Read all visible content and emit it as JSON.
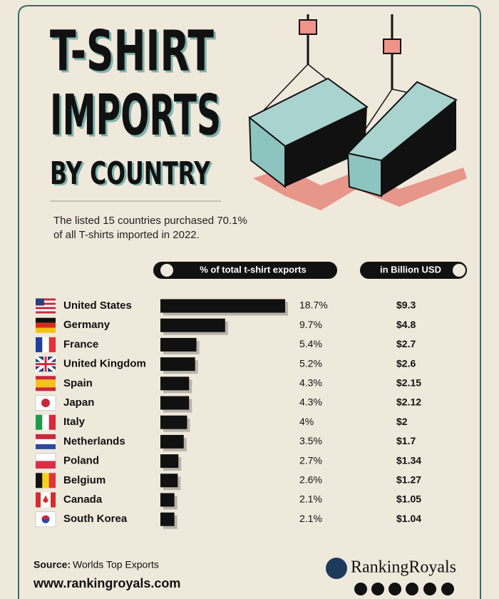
{
  "chart_data": {
    "type": "bar",
    "title": [
      "T-SHIRT",
      "IMPORTS",
      "BY COUNTRY"
    ],
    "subtitle": [
      "The listed 15 countries purchased 70.1%",
      "of all T-shirts imported in 2022."
    ],
    "categories": [
      "United States",
      "Germany",
      "France",
      "United Kingdom",
      "Spain",
      "Japan",
      "Italy",
      "Netherlands",
      "Poland",
      "Belgium",
      "Canada",
      "South Korea"
    ],
    "series": [
      {
        "name": "% of total t-shirt exports",
        "color": "#111111",
        "values": [
          18.7,
          9.7,
          5.4,
          5.2,
          4.3,
          4.3,
          4,
          3.5,
          2.7,
          2.6,
          2.1,
          2.1
        ],
        "value_labels": [
          "18.7%",
          "9.7%",
          "5.4%",
          "5.2%",
          "4.3%",
          "4.3%",
          "4%",
          "3.5%",
          "2.7%",
          "2.6%",
          "2.1%",
          "2.1%"
        ]
      },
      {
        "name": "in Billion USD",
        "values": [
          9.3,
          4.8,
          2.7,
          2.6,
          2.15,
          2.12,
          2,
          1.7,
          1.34,
          1.27,
          1.05,
          1.04
        ],
        "value_labels": [
          "$9.3",
          "$4.8",
          "$2.7",
          "$2.6",
          "$2.15",
          "$2.12",
          "$2",
          "$1.7",
          "$1.34",
          "$1.27",
          "$1.05",
          "$1.04"
        ]
      }
    ],
    "source_label": "Source:",
    "source": "Worlds Top Exports",
    "website": "www.rankingroyals.com",
    "brand": "RankingRoyals"
  }
}
